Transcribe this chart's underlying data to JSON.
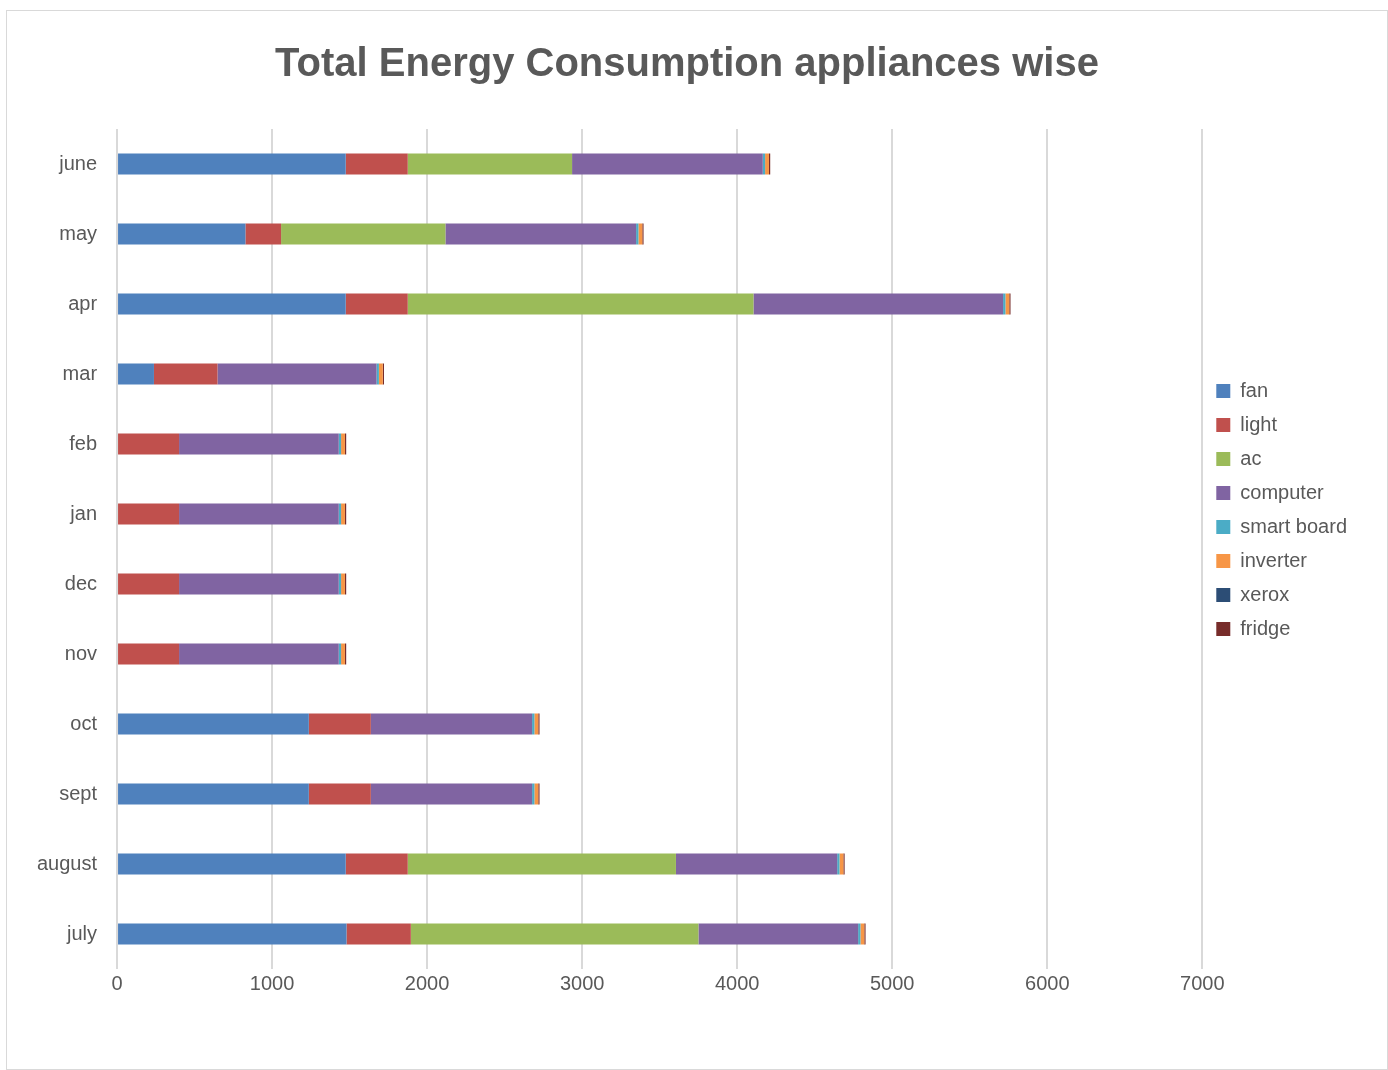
{
  "chart_data": {
    "type": "bar",
    "orientation": "horizontal",
    "stacked": true,
    "title": "Total Energy Consumption appliances wise",
    "categories": [
      "june",
      "may",
      "apr",
      "mar",
      "feb",
      "jan",
      "dec",
      "nov",
      "oct",
      "sept",
      "august",
      "july"
    ],
    "series": [
      {
        "name": "fan",
        "color": "#4f81bd",
        "values": [
          1475,
          828,
          1475,
          238,
          0,
          0,
          0,
          0,
          1237,
          1237,
          1475,
          1480
        ]
      },
      {
        "name": "light",
        "color": "#c0504d",
        "values": [
          400,
          230,
          400,
          410,
          400,
          400,
          400,
          400,
          400,
          400,
          400,
          415
        ]
      },
      {
        "name": "ac",
        "color": "#9bbb59",
        "values": [
          1060,
          1060,
          2230,
          0,
          0,
          0,
          0,
          0,
          0,
          0,
          1730,
          1855
        ]
      },
      {
        "name": "computer",
        "color": "#8064a2",
        "values": [
          1230,
          1230,
          1610,
          1026,
          1030,
          1030,
          1030,
          1030,
          1040,
          1040,
          1040,
          1030
        ]
      },
      {
        "name": "smart board",
        "color": "#4bacc6",
        "values": [
          15,
          15,
          15,
          15,
          15,
          15,
          15,
          15,
          15,
          15,
          15,
          15
        ]
      },
      {
        "name": "inverter",
        "color": "#f79646",
        "values": [
          25,
          25,
          25,
          25,
          25,
          25,
          25,
          25,
          25,
          25,
          25,
          25
        ]
      },
      {
        "name": "xerox",
        "color": "#2c4d75",
        "values": [
          null,
          null,
          null,
          null,
          null,
          null,
          null,
          null,
          null,
          null,
          null,
          null
        ]
      },
      {
        "name": "fridge",
        "color": "#772c2a",
        "values": [
          8,
          8,
          8,
          8,
          8,
          8,
          8,
          8,
          8,
          8,
          8,
          8
        ]
      }
    ],
    "xlim": [
      0,
      7000
    ],
    "xticks": [
      0,
      1000,
      2000,
      3000,
      4000,
      5000,
      6000,
      7000
    ],
    "grid": "x",
    "legend": "right"
  }
}
